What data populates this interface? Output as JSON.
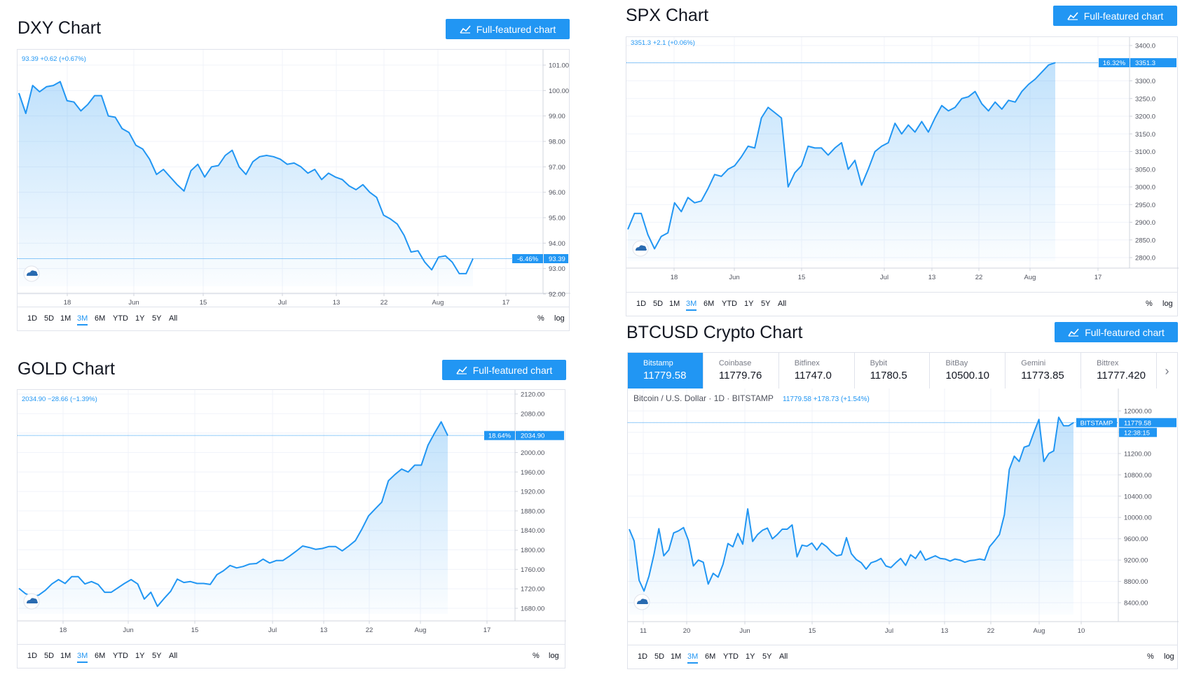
{
  "button_label": "Full-featured chart",
  "accent_color": "#2196f3",
  "timeframes": [
    "1D",
    "5D",
    "1M",
    "3M",
    "6M",
    "YTD",
    "1Y",
    "5Y",
    "All"
  ],
  "active_timeframe": "3M",
  "scale_percent_label": "%",
  "scale_log_label": "log",
  "dxy": {
    "title": "DXY Chart",
    "quote": "93.39",
    "change": "+0.62 (+0.67%)",
    "price_badge": "93.39",
    "pct_badge": "-6.46%"
  },
  "spx": {
    "title": "SPX Chart",
    "quote": "3351.3",
    "change": "+2.1 (+0.06%)",
    "price_badge": "3351.3",
    "pct_badge": "16.32%"
  },
  "gold": {
    "title": "GOLD Chart",
    "quote": "2034.90",
    "change": "−28.66 (−1.39%)",
    "price_badge": "2034.90",
    "pct_badge": "18.64%"
  },
  "btc": {
    "title": "BTCUSD Crypto Chart",
    "header": "Bitcoin / U.S. Dollar · 1D · BITSTAMP",
    "quote": "11779.58",
    "change": "+178.73 (+1.54%)",
    "price_badge": "11779.58",
    "exchange_badge": "BITSTAMP",
    "countdown_badge": "12:38:15",
    "exchanges": [
      {
        "name": "Bitstamp",
        "price": "11779.58"
      },
      {
        "name": "Coinbase",
        "price": "11779.76"
      },
      {
        "name": "Bitfinex",
        "price": "11747.0"
      },
      {
        "name": "Bybit",
        "price": "11780.5"
      },
      {
        "name": "BitBay",
        "price": "10500.10"
      },
      {
        "name": "Gemini",
        "price": "11773.85"
      },
      {
        "name": "Bittrex",
        "price": "11777.420"
      }
    ]
  },
  "chart_data": [
    {
      "id": "dxy",
      "type": "area",
      "title": "DXY Chart",
      "x_ticks": [
        "18",
        "Jun",
        "15",
        "Jul",
        "13",
        "22",
        "Aug",
        "17"
      ],
      "y_ticks": [
        "101.00",
        "100.00",
        "99.00",
        "98.00",
        "97.00",
        "96.00",
        "95.00",
        "94.00",
        "93.00",
        "92.00"
      ],
      "ylim": [
        92.0,
        101.0
      ],
      "last_value": 93.39,
      "series": [
        {
          "values": [
            99.9,
            99.1,
            100.2,
            99.95,
            100.15,
            100.2,
            100.35,
            99.6,
            99.55,
            99.2,
            99.45,
            99.8,
            99.8,
            99.0,
            98.95,
            98.5,
            98.35,
            97.85,
            97.7,
            97.3,
            96.7,
            96.9,
            96.6,
            96.3,
            96.05,
            96.85,
            97.1,
            96.6,
            97.0,
            97.05,
            97.45,
            97.65,
            97.0,
            96.7,
            97.2,
            97.4,
            97.45,
            97.4,
            97.3,
            97.1,
            97.15,
            97.0,
            96.75,
            96.9,
            96.5,
            96.75,
            96.6,
            96.5,
            96.25,
            96.1,
            96.3,
            96.0,
            95.8,
            95.1,
            94.95,
            94.75,
            94.3,
            93.65,
            93.7,
            93.25,
            92.95,
            93.45,
            93.5,
            93.25,
            92.8,
            92.8,
            93.39
          ]
        }
      ]
    },
    {
      "id": "spx",
      "type": "area",
      "title": "SPX Chart",
      "x_ticks": [
        "18",
        "Jun",
        "15",
        "Jul",
        "13",
        "22",
        "Aug",
        "17"
      ],
      "y_ticks": [
        "3400.0",
        "3350.0",
        "3300.0",
        "3250.0",
        "3200.0",
        "3150.0",
        "3100.0",
        "3050.0",
        "3000.0",
        "2950.0",
        "2900.0",
        "2850.0",
        "2800.0"
      ],
      "ylim": [
        2760.0,
        3420.0
      ],
      "last_value": 3351.3,
      "series": [
        {
          "values": [
            2880,
            2925,
            2925,
            2865,
            2825,
            2860,
            2870,
            2955,
            2930,
            2970,
            2955,
            2960,
            2995,
            3035,
            3030,
            3050,
            3060,
            3085,
            3115,
            3110,
            3195,
            3225,
            3210,
            3195,
            3000,
            3040,
            3060,
            3115,
            3110,
            3110,
            3090,
            3110,
            3125,
            3050,
            3075,
            3005,
            3050,
            3100,
            3115,
            3125,
            3180,
            3150,
            3175,
            3155,
            3185,
            3155,
            3195,
            3230,
            3215,
            3225,
            3250,
            3255,
            3270,
            3235,
            3215,
            3240,
            3220,
            3245,
            3240,
            3270,
            3290,
            3305,
            3325,
            3345,
            3351.3
          ]
        }
      ]
    },
    {
      "id": "gold",
      "type": "area",
      "title": "GOLD Chart",
      "x_ticks": [
        "18",
        "Jun",
        "15",
        "Jul",
        "13",
        "22",
        "Aug",
        "17"
      ],
      "y_ticks": [
        "2120.00",
        "2080.00",
        "2040.00",
        "2000.00",
        "1960.00",
        "1920.00",
        "1880.00",
        "1840.00",
        "1800.00",
        "1760.00",
        "1720.00",
        "1680.00"
      ],
      "ylim": [
        1660.0,
        2125.0
      ],
      "last_value": 2034.9,
      "series": [
        {
          "values": [
            1721,
            1710,
            1704,
            1707,
            1717,
            1730,
            1739,
            1731,
            1745,
            1745,
            1730,
            1735,
            1729,
            1713,
            1713,
            1722,
            1731,
            1739,
            1730,
            1699,
            1713,
            1684,
            1700,
            1715,
            1740,
            1733,
            1735,
            1731,
            1731,
            1729,
            1749,
            1757,
            1768,
            1763,
            1766,
            1771,
            1772,
            1781,
            1773,
            1778,
            1778,
            1787,
            1797,
            1808,
            1805,
            1801,
            1803,
            1807,
            1807,
            1798,
            1808,
            1819,
            1843,
            1870,
            1884,
            1898,
            1942,
            1955,
            1966,
            1960,
            1974,
            1974,
            2015,
            2040,
            2063,
            2034.9
          ]
        }
      ]
    },
    {
      "id": "btc",
      "type": "area",
      "title": "BTCUSD Crypto Chart",
      "x_ticks": [
        "11",
        "20",
        "Jun",
        "15",
        "Jul",
        "13",
        "22",
        "Aug",
        "10"
      ],
      "y_ticks": [
        "12000.00",
        "11600.00",
        "11200.00",
        "10800.00",
        "10400.00",
        "10000.00",
        "9600.00",
        "9200.00",
        "8800.00",
        "8400.00"
      ],
      "ylim": [
        8200.0,
        12150.0
      ],
      "last_value": 11779.58,
      "series": [
        {
          "values": [
            9780,
            9560,
            8820,
            8620,
            8900,
            9300,
            9790,
            9280,
            9390,
            9710,
            9750,
            9810,
            9570,
            9090,
            9200,
            9160,
            8750,
            8950,
            8880,
            9120,
            9510,
            9450,
            9700,
            9500,
            10160,
            9550,
            9680,
            9760,
            9800,
            9600,
            9680,
            9780,
            9780,
            9860,
            9260,
            9480,
            9460,
            9520,
            9390,
            9520,
            9450,
            9350,
            9280,
            9300,
            9620,
            9320,
            9210,
            9150,
            9030,
            9150,
            9180,
            9230,
            9090,
            9060,
            9150,
            9230,
            9100,
            9300,
            9230,
            9370,
            9200,
            9240,
            9280,
            9230,
            9220,
            9180,
            9220,
            9200,
            9160,
            9190,
            9200,
            9220,
            9200,
            9450,
            9560,
            9680,
            10050,
            10900,
            11150,
            11050,
            11320,
            11350,
            11600,
            11840,
            11050,
            11200,
            11250,
            11880,
            11720,
            11720,
            11779.58
          ]
        }
      ]
    }
  ]
}
